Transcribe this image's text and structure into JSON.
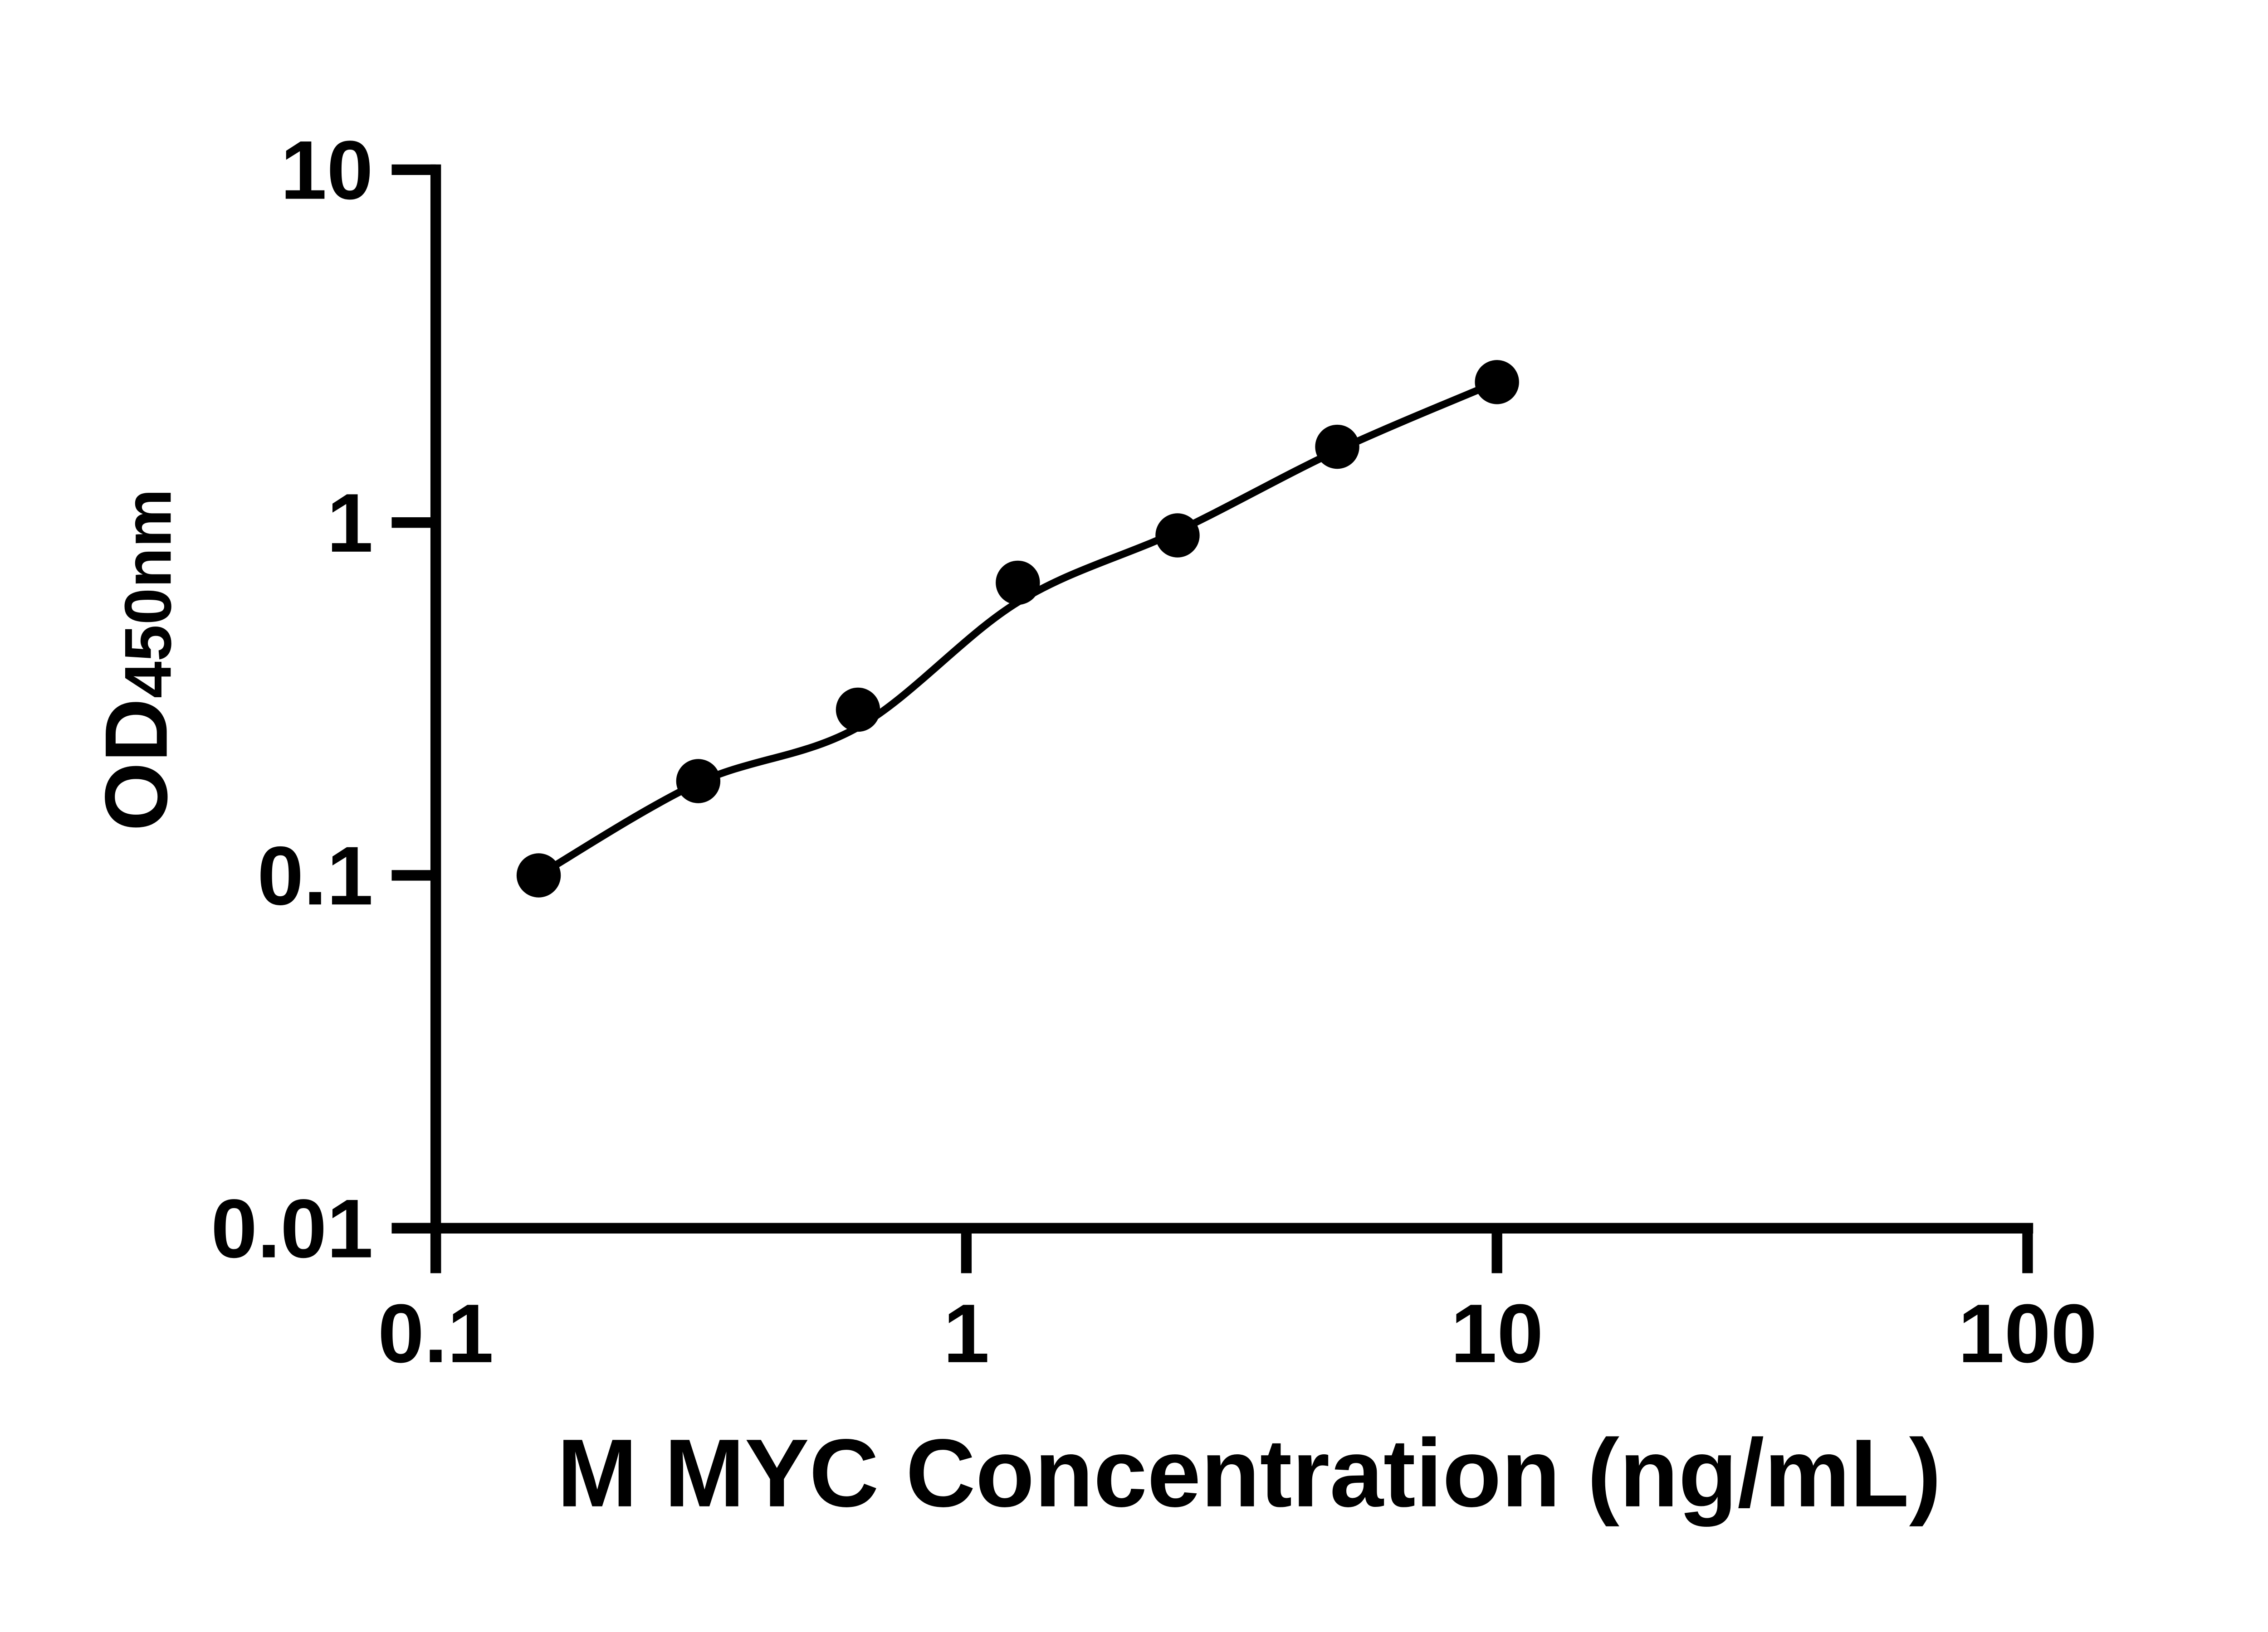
{
  "chart_data": {
    "type": "scatter",
    "title": "",
    "xlabel": "M MYC Concentration (ng/mL)",
    "ylabel_main": "OD",
    "ylabel_sub": "450nm",
    "grid": false,
    "legend": "none",
    "axes": {
      "x": {
        "scale": "log",
        "min": 0.1,
        "max": 100,
        "ticks": [
          0.1,
          1,
          10,
          100
        ],
        "tick_labels": [
          "0.1",
          "1",
          "10",
          "100"
        ]
      },
      "y": {
        "scale": "log",
        "min": 0.01,
        "max": 10,
        "ticks": [
          10,
          1,
          0.1,
          0.01
        ],
        "tick_labels": [
          "10",
          "1",
          "0.1",
          "0.01"
        ]
      }
    },
    "series": [
      {
        "name": "standards",
        "kind": "scatter",
        "marker": "filled-circle",
        "color": "#000000",
        "x": [
          0.1563,
          0.3125,
          0.625,
          1.25,
          2.5,
          5,
          10
        ],
        "y": [
          0.1,
          0.185,
          0.295,
          0.675,
          0.92,
          1.64,
          2.5
        ]
      },
      {
        "name": "fit-curve",
        "kind": "smooth-line",
        "color": "#000000",
        "x": [
          0.1563,
          0.3125,
          0.625,
          1.25,
          2.5,
          5,
          10
        ],
        "y": [
          0.1,
          0.183,
          0.263,
          0.595,
          0.945,
          1.6,
          2.5
        ]
      }
    ]
  },
  "colors": {
    "foreground": "#000000",
    "background": "#ffffff"
  }
}
